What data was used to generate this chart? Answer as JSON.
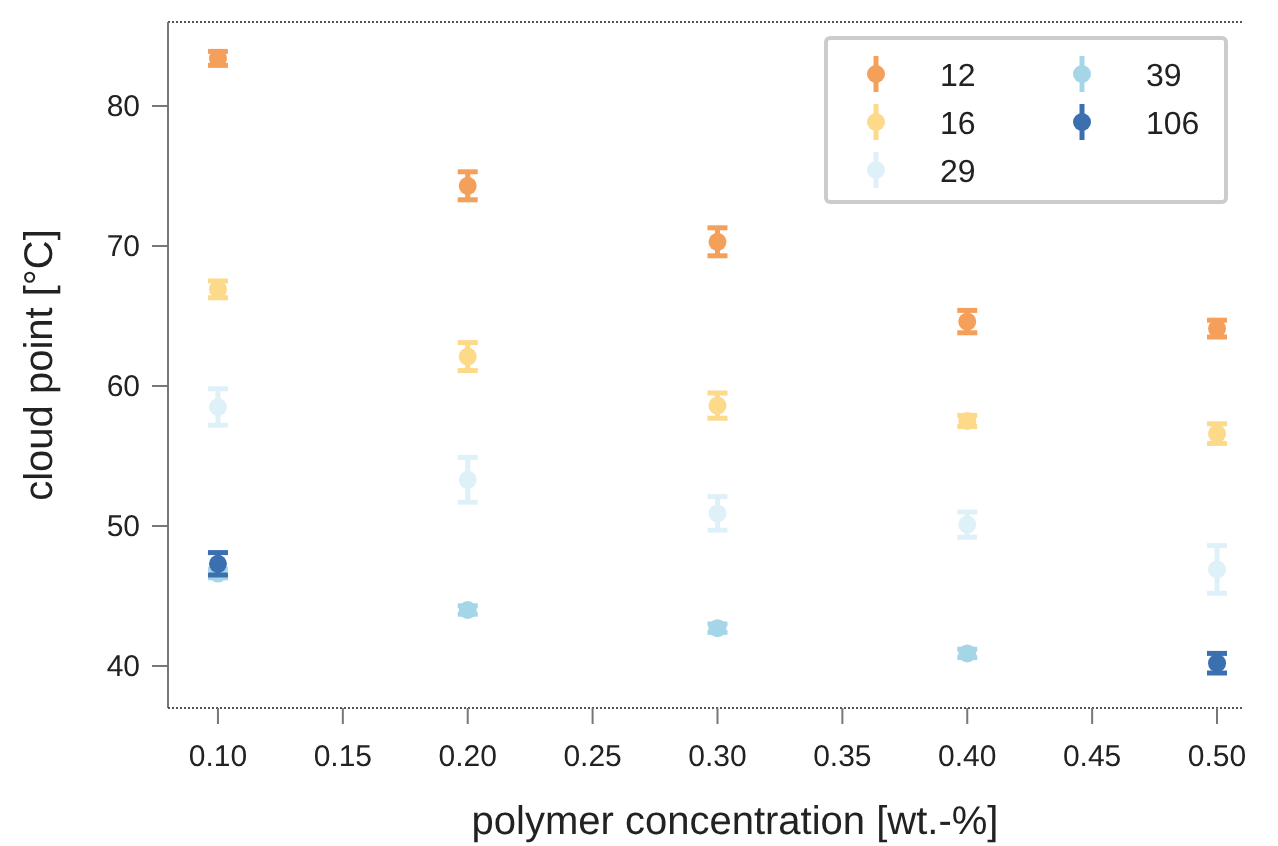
{
  "chart_data": {
    "type": "scatter",
    "xlabel": "polymer concentration [wt.-%]",
    "ylabel": "cloud point [°C]",
    "x": [
      0.1,
      0.2,
      0.3,
      0.4,
      0.5
    ],
    "xlim": [
      0.08,
      0.51
    ],
    "xticks": [
      {
        "value": 0.1,
        "label": "0.10"
      },
      {
        "value": 0.15,
        "label": "0.15"
      },
      {
        "value": 0.2,
        "label": "0.20"
      },
      {
        "value": 0.25,
        "label": "0.25"
      },
      {
        "value": 0.3,
        "label": "0.30"
      },
      {
        "value": 0.35,
        "label": "0.35"
      },
      {
        "value": 0.4,
        "label": "0.40"
      },
      {
        "value": 0.45,
        "label": "0.45"
      },
      {
        "value": 0.5,
        "label": "0.50"
      }
    ],
    "ylim": [
      37,
      86
    ],
    "yticks": [
      40,
      50,
      60,
      70,
      80
    ],
    "marker": "circle",
    "legend": "top right",
    "grid": false,
    "series": [
      {
        "name": "12",
        "color": "#f5a05a",
        "values": [
          83.4,
          74.3,
          70.3,
          64.6,
          64.1
        ],
        "errors": [
          0.5,
          1,
          1,
          0.8,
          0.6
        ]
      },
      {
        "name": "16",
        "color": "#fdd98a",
        "values": [
          66.9,
          62.1,
          58.6,
          57.5,
          56.6
        ],
        "errors": [
          0.6,
          1,
          0.9,
          0.4,
          0.7
        ]
      },
      {
        "name": "29",
        "color": "#dff1f8",
        "values": [
          58.5,
          53.3,
          50.9,
          50.1,
          46.9
        ],
        "errors": [
          1.3,
          1.6,
          1.2,
          0.9,
          1.7
        ]
      },
      {
        "name": "39",
        "color": "#a5d6e8",
        "values": [
          46.6,
          44,
          42.7,
          40.9,
          null
        ],
        "errors": [
          0.3,
          0.3,
          0.3,
          0.3,
          null
        ]
      },
      {
        "name": "106",
        "color": "#3a6fb0",
        "values": [
          47.3,
          null,
          null,
          null,
          40.2
        ],
        "errors": [
          0.8,
          null,
          null,
          null,
          0.7
        ]
      }
    ]
  }
}
